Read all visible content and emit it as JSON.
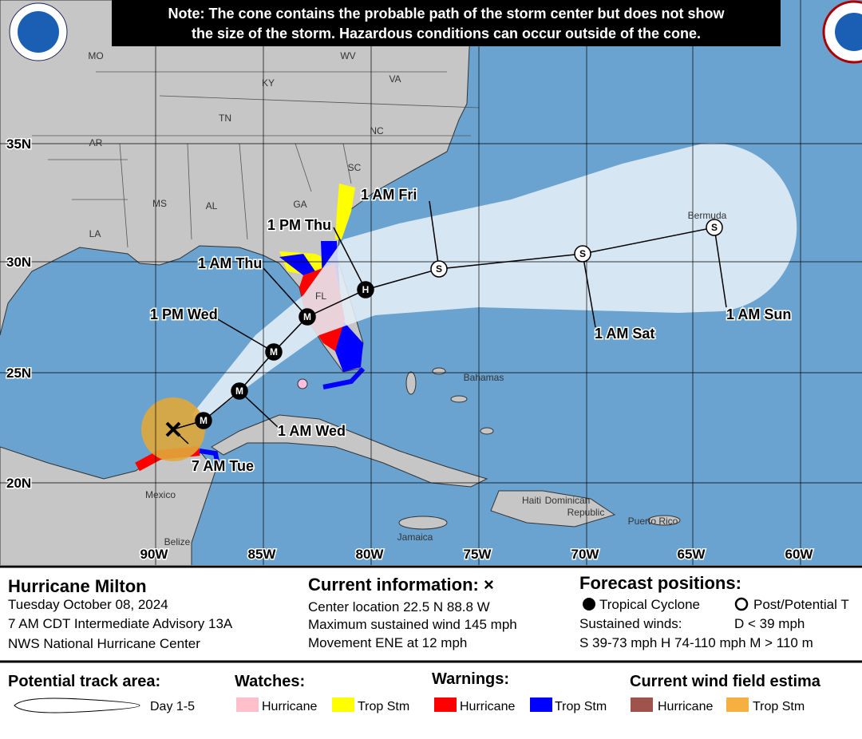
{
  "note": [
    "Note: The cone contains the probable path of the storm center but does not show",
    "the size of the storm. Hazardous conditions can occur outside of the cone."
  ],
  "map": {
    "places": [
      "MO",
      "WV",
      "KY",
      "VA",
      "TN",
      "NC",
      "AR",
      "SC",
      "MS",
      "AL",
      "GA",
      "LA",
      "FL",
      "Bermuda",
      "Bahamas",
      "Mexico",
      "Belize",
      "Jamaica",
      "Haiti",
      "Dominican",
      "Republic",
      "Puerto Rico"
    ],
    "latitudes": [
      "35N",
      "30N",
      "25N",
      "20N"
    ],
    "longitudes": [
      "90W",
      "85W",
      "80W",
      "75W",
      "70W",
      "65W",
      "60W"
    ],
    "track_labels": [
      "7 AM Tue",
      "1 AM Wed",
      "1 PM Wed",
      "1 AM Thu",
      "1 PM Thu",
      "1 AM Fri",
      "1 AM Sat",
      "1 AM Sun"
    ],
    "markers": [
      "M",
      "M",
      "M",
      "M",
      "H",
      "S",
      "S",
      "S"
    ]
  },
  "info": {
    "storm": "Hurricane Milton",
    "date": "Tuesday October 08, 2024",
    "advisory": "7 AM CDT Intermediate Advisory 13A",
    "office": "NWS National Hurricane Center"
  },
  "current": {
    "title": "Current information: ×",
    "lines": [
      "Center location 22.5 N 88.8 W",
      "Maximum sustained wind 145 mph",
      "Movement ENE at 12 mph"
    ]
  },
  "forecast": {
    "title": "Forecast positions:",
    "tropical": "Tropical Cyclone",
    "post": "Post/Potential T",
    "winds": "Sustained winds:",
    "d": "D < 39 mph",
    "scale": "S 39-73 mph  H 74-110 mph  M > 110 m"
  },
  "legend": {
    "track": "Potential track area:",
    "day": "Day 1-5",
    "watches": "Watches:",
    "warnings": "Warnings:",
    "wind": "Current wind field estima",
    "items": [
      "Hurricane",
      "Trop Stm",
      "Hurricane",
      "Trop Stm",
      "Hurricane",
      "Trop Stm"
    ]
  }
}
